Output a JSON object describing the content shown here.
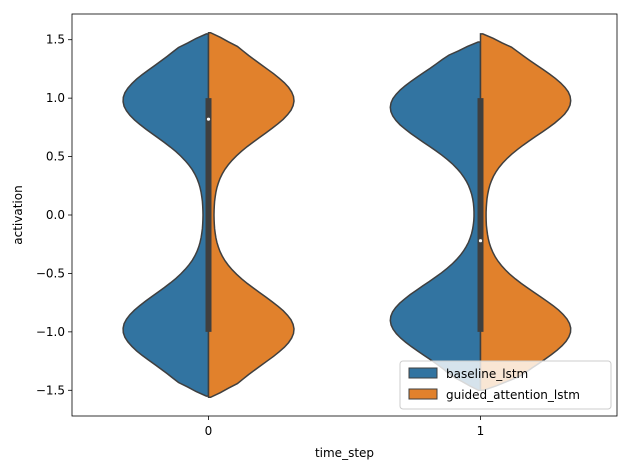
{
  "chart_data": {
    "type": "violin",
    "split": true,
    "xlabel": "time_step",
    "ylabel": "activation",
    "categories": [
      "0",
      "1"
    ],
    "ylim": [
      -1.72,
      1.72
    ],
    "yticks": [
      -1.5,
      -1.0,
      -0.5,
      0.0,
      0.5,
      1.0,
      1.5
    ],
    "ytick_labels": [
      "−1.5",
      "−1.0",
      "−0.5",
      "0.0",
      "0.5",
      "1.0",
      "1.5"
    ],
    "legend_position": "bottom-right",
    "series": [
      {
        "name": "baseline_lstm",
        "color": "#3274a1",
        "side": "left",
        "extent": [
          [
            -1.55,
            1.55
          ],
          [
            -1.5,
            1.48
          ]
        ],
        "modes": [
          [
            -0.98,
            0.98
          ],
          [
            -0.9,
            0.92
          ]
        ],
        "peak_density": [
          0.9,
          0.95
        ],
        "min_density": [
          0.05,
          0.05
        ]
      },
      {
        "name": "guided_attention_lstm",
        "color": "#e1812c",
        "side": "right",
        "extent": [
          [
            -1.56,
            1.56
          ],
          [
            -1.5,
            1.55
          ]
        ],
        "modes": [
          [
            -0.98,
            0.98
          ],
          [
            -0.98,
            0.98
          ]
        ],
        "peak_density": [
          0.9,
          0.95
        ],
        "min_density": [
          0.05,
          0.05
        ]
      }
    ],
    "box": [
      {
        "category": "0",
        "q1": -1.0,
        "median": 0.82,
        "q3": 1.0
      },
      {
        "category": "1",
        "q1": -1.0,
        "median": -0.22,
        "q3": 1.0
      }
    ]
  }
}
